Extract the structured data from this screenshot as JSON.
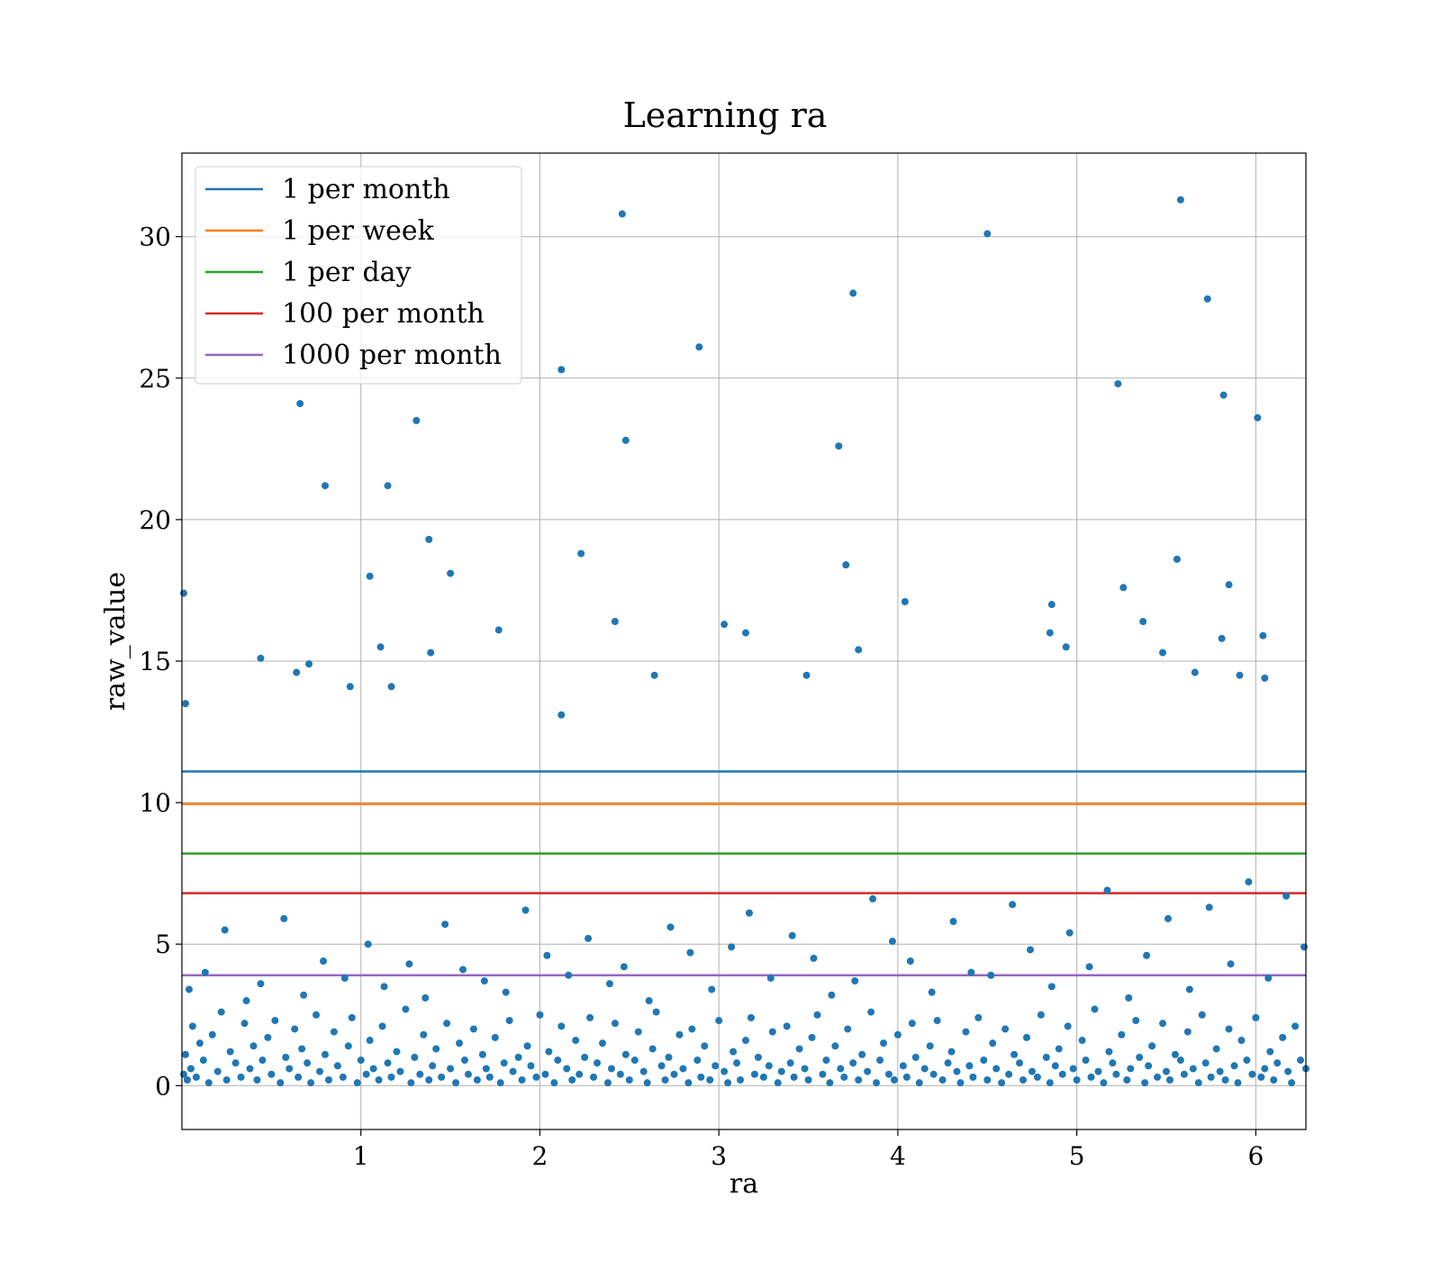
{
  "chart_data": {
    "type": "scatter",
    "title": "Learning ra",
    "xlabel": "ra",
    "ylabel": "raw_value",
    "xlim": [
      0.0,
      6.28
    ],
    "ylim": [
      -1.55,
      32.95
    ],
    "xticks": [
      1,
      2,
      3,
      4,
      5,
      6
    ],
    "yticks": [
      0,
      5,
      10,
      15,
      20,
      25,
      30
    ],
    "grid": true,
    "legend_position": "top-left",
    "point_color": "#1f77b4",
    "hlines": [
      {
        "name": "1 per month",
        "y": 11.1,
        "color": "#1f77b4"
      },
      {
        "name": "1 per week",
        "y": 9.95,
        "color": "#ff7f0e"
      },
      {
        "name": "1 per day",
        "y": 8.2,
        "color": "#2ca02c"
      },
      {
        "name": "100 per month",
        "y": 6.8,
        "color": "#d62728"
      },
      {
        "name": "1000 per month",
        "y": 3.9,
        "color": "#9467bd"
      }
    ],
    "points": {
      "x": [
        0.01,
        0.02,
        0.03,
        0.05,
        0.06,
        0.08,
        0.1,
        0.12,
        0.15,
        0.17,
        0.2,
        0.22,
        0.25,
        0.27,
        0.3,
        0.33,
        0.35,
        0.38,
        0.4,
        0.42,
        0.45,
        0.48,
        0.5,
        0.52,
        0.55,
        0.58,
        0.6,
        0.63,
        0.65,
        0.67,
        0.7,
        0.72,
        0.75,
        0.77,
        0.8,
        0.82,
        0.85,
        0.87,
        0.9,
        0.93,
        0.95,
        0.98,
        1.0,
        1.03,
        1.05,
        1.07,
        1.1,
        1.12,
        1.15,
        1.17,
        1.2,
        1.22,
        1.25,
        1.28,
        1.3,
        1.33,
        1.35,
        1.38,
        1.4,
        1.42,
        1.45,
        1.48,
        1.5,
        1.53,
        1.55,
        1.58,
        1.6,
        1.63,
        1.65,
        1.68,
        1.7,
        1.72,
        1.75,
        1.78,
        1.8,
        1.83,
        1.85,
        1.88,
        1.9,
        1.93,
        1.95,
        1.98,
        2.0,
        2.03,
        2.05,
        2.08,
        2.1,
        2.12,
        2.15,
        2.18,
        2.2,
        2.22,
        2.25,
        2.28,
        2.3,
        2.32,
        2.35,
        2.38,
        2.4,
        2.42,
        2.45,
        2.48,
        2.5,
        2.53,
        2.55,
        2.58,
        2.6,
        2.63,
        2.65,
        2.68,
        2.7,
        2.72,
        2.75,
        2.78,
        2.8,
        2.83,
        2.85,
        2.88,
        2.9,
        2.92,
        2.95,
        2.98,
        3.0,
        3.03,
        3.05,
        3.08,
        3.1,
        3.12,
        3.15,
        3.18,
        3.2,
        3.22,
        3.25,
        3.28,
        3.3,
        3.33,
        3.35,
        3.38,
        3.4,
        3.42,
        3.45,
        3.48,
        3.5,
        3.52,
        3.55,
        3.58,
        3.6,
        3.62,
        3.65,
        3.68,
        3.7,
        3.72,
        3.75,
        3.78,
        3.8,
        3.83,
        3.85,
        3.88,
        3.9,
        3.92,
        3.95,
        3.98,
        4.0,
        4.03,
        4.05,
        4.08,
        4.1,
        4.12,
        4.15,
        4.18,
        4.2,
        4.22,
        4.25,
        4.28,
        4.3,
        4.33,
        4.35,
        4.38,
        4.4,
        4.42,
        4.45,
        4.48,
        4.5,
        4.53,
        4.55,
        4.58,
        4.6,
        4.62,
        4.65,
        4.68,
        4.7,
        4.72,
        4.75,
        4.78,
        4.8,
        4.83,
        4.85,
        4.88,
        4.9,
        4.92,
        4.95,
        4.98,
        5.0,
        5.03,
        5.05,
        5.08,
        5.1,
        5.12,
        5.15,
        5.18,
        5.2,
        5.22,
        5.25,
        5.28,
        5.3,
        5.33,
        5.35,
        5.38,
        5.4,
        5.42,
        5.45,
        5.48,
        5.5,
        5.52,
        5.55,
        5.58,
        5.6,
        5.62,
        5.65,
        5.68,
        5.7,
        5.72,
        5.75,
        5.78,
        5.8,
        5.83,
        5.85,
        5.88,
        5.9,
        5.92,
        5.95,
        5.98,
        6.0,
        6.03,
        6.05,
        6.08,
        6.1,
        6.12,
        6.15,
        6.18,
        6.2,
        6.22,
        6.25,
        6.28,
        0.04,
        0.13,
        0.24,
        0.36,
        0.44,
        0.57,
        0.68,
        0.79,
        0.91,
        1.04,
        1.13,
        1.27,
        1.36,
        1.47,
        1.57,
        1.69,
        1.81,
        1.92,
        2.04,
        2.16,
        2.27,
        2.39,
        2.47,
        2.61,
        2.73,
        2.84,
        2.96,
        3.07,
        3.17,
        3.29,
        3.41,
        3.53,
        3.63,
        3.76,
        3.86,
        3.97,
        4.07,
        4.19,
        4.31,
        4.41,
        4.52,
        4.64,
        4.74,
        4.86,
        4.96,
        5.07,
        5.17,
        5.29,
        5.39,
        5.51,
        5.63,
        5.74,
        5.86,
        5.96,
        6.07,
        6.17,
        6.27,
        0.01,
        0.66,
        0.8,
        1.15,
        1.31,
        1.38,
        1.5,
        2.12,
        2.23,
        2.46,
        2.48,
        2.89,
        3.67,
        3.71,
        3.75,
        4.5,
        5.23,
        5.26,
        5.56,
        5.58,
        5.73,
        5.82,
        5.85,
        6.01,
        6.04,
        0.02,
        0.44,
        0.64,
        0.71,
        0.94,
        1.05,
        1.11,
        1.17,
        1.39,
        1.77,
        2.12,
        2.42,
        2.64,
        3.03,
        3.15,
        3.49,
        3.78,
        4.04,
        4.85,
        4.86,
        4.94,
        5.37,
        5.48,
        5.66,
        5.81,
        5.91,
        6.05
      ],
      "y": [
        0.4,
        1.1,
        0.2,
        0.6,
        2.1,
        0.3,
        1.5,
        0.9,
        0.1,
        1.8,
        0.5,
        2.6,
        0.2,
        1.2,
        0.8,
        0.3,
        2.2,
        0.6,
        1.4,
        0.2,
        0.9,
        1.7,
        0.4,
        2.3,
        0.1,
        1.0,
        0.6,
        2.0,
        0.3,
        1.3,
        0.8,
        0.1,
        2.5,
        0.5,
        1.1,
        0.2,
        1.9,
        0.7,
        0.3,
        1.4,
        2.4,
        0.1,
        0.9,
        0.4,
        1.6,
        0.6,
        0.2,
        2.1,
        0.8,
        0.3,
        1.2,
        0.5,
        2.7,
        0.1,
        1.0,
        0.4,
        1.8,
        0.2,
        0.7,
        1.3,
        0.3,
        2.2,
        0.6,
        0.1,
        1.5,
        0.9,
        0.4,
        2.0,
        0.2,
        1.1,
        0.6,
        0.3,
        1.7,
        0.1,
        0.8,
        2.3,
        0.5,
        1.0,
        0.2,
        1.4,
        0.7,
        0.3,
        2.5,
        0.4,
        1.2,
        0.1,
        0.9,
        2.1,
        0.6,
        0.2,
        1.6,
        0.4,
        1.0,
        2.4,
        0.3,
        0.8,
        1.5,
        0.1,
        0.6,
        2.2,
        0.4,
        1.1,
        0.2,
        0.9,
        1.9,
        0.5,
        0.1,
        1.3,
        2.6,
        0.7,
        0.2,
        1.0,
        0.4,
        1.8,
        0.6,
        0.1,
        2.0,
        0.9,
        0.3,
        1.4,
        0.2,
        0.7,
        2.3,
        0.5,
        0.1,
        1.2,
        0.8,
        0.2,
        1.6,
        2.4,
        0.4,
        1.0,
        0.3,
        0.7,
        1.9,
        0.1,
        0.5,
        2.1,
        0.8,
        0.3,
        1.3,
        0.6,
        0.2,
        1.7,
        2.5,
        0.4,
        0.9,
        0.1,
        1.4,
        0.6,
        0.3,
        2.0,
        0.8,
        0.2,
        1.1,
        0.5,
        2.6,
        0.1,
        0.9,
        1.5,
        0.4,
        0.2,
        1.8,
        0.7,
        0.3,
        2.2,
        1.0,
        0.1,
        0.6,
        1.4,
        0.4,
        2.3,
        0.2,
        0.8,
        1.2,
        0.5,
        0.1,
        1.9,
        0.7,
        0.3,
        2.4,
        0.9,
        0.2,
        1.5,
        0.6,
        0.1,
        2.0,
        0.4,
        1.1,
        0.8,
        0.2,
        1.7,
        0.5,
        0.3,
        2.5,
        1.0,
        0.1,
        0.7,
        1.3,
        0.4,
        2.1,
        0.6,
        0.2,
        1.6,
        0.9,
        0.3,
        2.7,
        0.5,
        0.1,
        1.2,
        0.8,
        0.4,
        1.8,
        0.2,
        0.6,
        2.3,
        1.0,
        0.1,
        0.7,
        1.4,
        0.3,
        2.2,
        0.5,
        0.2,
        1.1,
        0.9,
        0.4,
        1.9,
        0.6,
        0.1,
        2.5,
        0.8,
        0.3,
        1.3,
        0.5,
        0.2,
        2.0,
        0.7,
        0.1,
        1.6,
        0.9,
        0.4,
        2.4,
        0.3,
        0.6,
        1.2,
        0.2,
        0.8,
        1.7,
        0.5,
        0.1,
        2.1,
        0.9,
        0.6,
        3.4,
        4.0,
        5.5,
        3.0,
        3.6,
        5.9,
        3.2,
        4.4,
        3.8,
        5.0,
        3.5,
        4.3,
        3.1,
        5.7,
        4.1,
        3.7,
        3.3,
        6.2,
        4.6,
        3.9,
        5.2,
        3.6,
        4.2,
        3.0,
        5.6,
        4.7,
        3.4,
        4.9,
        6.1,
        3.8,
        5.3,
        4.5,
        3.2,
        3.7,
        6.6,
        5.1,
        4.4,
        3.3,
        5.8,
        4.0,
        3.9,
        6.4,
        4.8,
        3.5,
        5.4,
        4.2,
        6.9,
        3.1,
        4.6,
        5.9,
        3.4,
        6.3,
        4.3,
        7.2,
        3.8,
        6.7,
        4.9,
        17.4,
        24.1,
        21.2,
        21.2,
        23.5,
        19.3,
        18.1,
        25.3,
        18.8,
        30.8,
        22.8,
        26.1,
        22.6,
        18.4,
        28.0,
        30.1,
        24.8,
        17.6,
        18.6,
        31.3,
        27.8,
        24.4,
        17.7,
        23.6,
        15.9,
        13.5,
        15.1,
        14.6,
        14.9,
        14.1,
        18.0,
        15.5,
        14.1,
        15.3,
        16.1,
        13.1,
        16.4,
        14.5,
        16.3,
        16.0,
        14.5,
        15.4,
        17.1,
        16.0,
        17.0,
        15.5,
        16.4,
        15.3,
        14.6,
        15.8,
        14.5,
        14.4
      ]
    }
  }
}
